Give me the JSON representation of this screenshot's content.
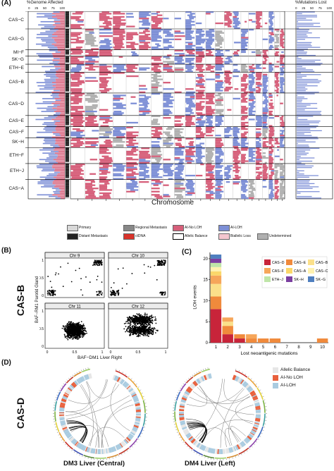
{
  "panelA": {
    "label": "(A)",
    "left_axis_title": "%Genome Affected",
    "left_ticks": [
      "0",
      "25",
      "50",
      "75",
      "100"
    ],
    "right_axis_title": "%Mutations Lost",
    "right_ticks": [
      "0",
      "25",
      "50",
      "75",
      "100"
    ],
    "xlabel": "Chromosome",
    "cohorts": [
      "CAS−C",
      "CAS−G",
      "MI−F",
      "SK−G",
      "ETH−E",
      "CAS−B",
      "CAS−D",
      "CAS−E",
      "CAS−F",
      "SK−H",
      "ETH−F",
      "ETH−J",
      "CAS−A"
    ],
    "legend": [
      {
        "label": "Primary",
        "color": "#d8d8d8"
      },
      {
        "label": "Regional Metastasis",
        "color": "#888888"
      },
      {
        "label": "AI-No LOH",
        "color": "#d65f7a"
      },
      {
        "label": "AI-LOH",
        "color": "#7d8fd6"
      },
      {
        "label": "Distant Metastasis",
        "color": "#222222"
      },
      {
        "label": "ctDNA",
        "color": "#d8332b"
      },
      {
        "label": "Allelic Balance",
        "color": "#ffffff"
      },
      {
        "label": "Biallelic Loss",
        "color": "#f4c7cf"
      },
      {
        "label": "Undetermined",
        "color": "#b0b0b0"
      }
    ]
  },
  "panelB": {
    "label": "(B)",
    "side_label": "CAS-B",
    "ylabel": "BAF−RM1 Parotid Gland",
    "xlabel": "BAF−DM1 Liver Right",
    "facets": [
      "Chr 9",
      "Chr 10",
      "Chr 11",
      "Chr 12"
    ],
    "x_ticks": [
      "0",
      "0.5",
      "1"
    ],
    "y_ticks": [
      "0",
      "0.5",
      "1"
    ]
  },
  "panelC": {
    "label": "(C)",
    "chart_data": {
      "type": "bar",
      "stacked": true,
      "ylabel": "LOH events",
      "xlabel": "Lost neoantigenic mutations",
      "categories": [
        "1",
        "2",
        "3",
        "4",
        "5",
        "6",
        "7",
        "8",
        "9",
        "10"
      ],
      "y_ticks": [
        "0",
        "5",
        "10",
        "15",
        "20"
      ],
      "ylim": [
        0,
        21.5
      ],
      "legend_position": "top-right",
      "series": [
        {
          "name": "CAS−D",
          "color": "#c8243a",
          "values": [
            8,
            2,
            1,
            0,
            0,
            0,
            0,
            0,
            0,
            0
          ]
        },
        {
          "name": "CAS−E",
          "color": "#f08a3c",
          "values": [
            3,
            2,
            1,
            1,
            1,
            1,
            0,
            0,
            0,
            1
          ]
        },
        {
          "name": "CAS−B",
          "color": "#fbe08a",
          "values": [
            3,
            1,
            0,
            0,
            0,
            0,
            0,
            0,
            0,
            0
          ]
        },
        {
          "name": "CAS−F",
          "color": "#f6a65a",
          "values": [
            2,
            1,
            0,
            1,
            0,
            0,
            0,
            0,
            0,
            0
          ]
        },
        {
          "name": "CAS−A",
          "color": "#fbd76a",
          "values": [
            1,
            0,
            0,
            0,
            0,
            0,
            0,
            0,
            0,
            0
          ]
        },
        {
          "name": "CAS−C",
          "color": "#fff2b0",
          "values": [
            1,
            0,
            0,
            0,
            0,
            0,
            0,
            0,
            0,
            0
          ]
        },
        {
          "name": "ETH−J",
          "color": "#bfe5a8",
          "values": [
            1,
            0,
            0,
            0,
            0,
            0,
            0,
            0,
            0,
            0
          ]
        },
        {
          "name": "SK−H",
          "color": "#7b3fa0",
          "values": [
            1,
            0,
            0,
            0,
            0,
            0,
            0,
            0,
            0,
            0
          ]
        },
        {
          "name": "SK−G",
          "color": "#4f7fbf",
          "values": [
            1,
            0,
            0,
            0,
            0,
            0,
            0,
            0,
            0,
            0
          ]
        }
      ]
    }
  },
  "panelD": {
    "label": "(D)",
    "side_label": "CAS-D",
    "left_title": "DM3 Liver (Central)",
    "right_title": "DM4 Liver (Left)",
    "legend": [
      {
        "label": "Allelic Balance",
        "color": "#e6e6e6"
      },
      {
        "label": "AI-No LOH",
        "color": "#e8603c"
      },
      {
        "label": "AI-LOH",
        "color": "#a9cbe0"
      }
    ]
  },
  "colors": {
    "ai_no_loh": "#d65f7a",
    "ai_loh": "#7d8fd6",
    "undetermined": "#b0b0b0"
  }
}
